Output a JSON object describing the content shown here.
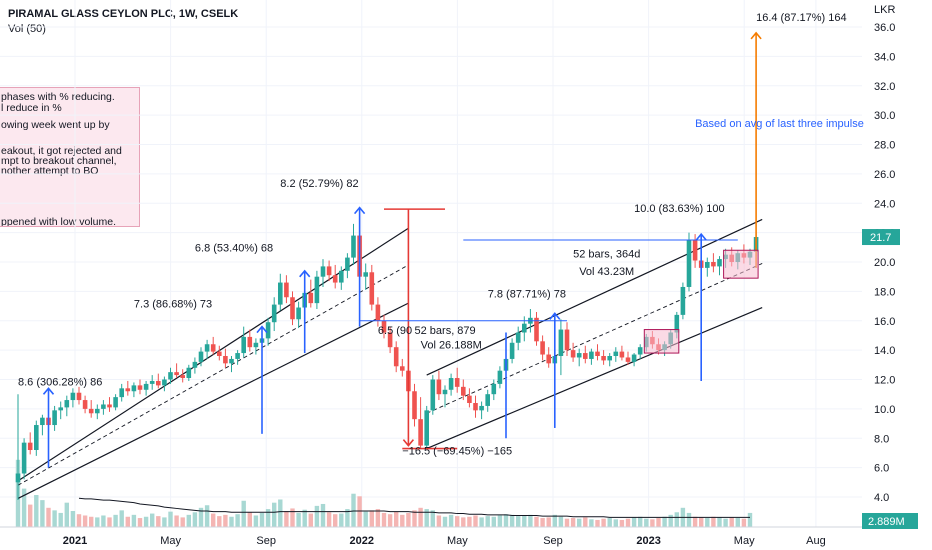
{
  "header": {
    "title": "PIRAMAL GLASS CEYLON PLC, 1W, CSELK",
    "volume_label": "Vol (50)"
  },
  "notes": [
    "phases with %  reducing.",
    "l reduce in  %",
    "owing week went up by",
    "eakout, it got rejected and",
    "mpt to breakout channel,",
    "nother attempt to BO",
    "ppened with low volume."
  ],
  "colors": {
    "up": "#26a69a",
    "down": "#ef5350",
    "volume_up": "#a8d8d3",
    "volume_down": "#f4b5b3",
    "channel": "#131722",
    "blue": "#2962ff",
    "red": "#e53935",
    "orange": "#f57c00",
    "box_fill": "#f8bbd0",
    "box_stroke": "#ad1457"
  },
  "chart_data": {
    "type": "candlestick",
    "title": "PIRAMAL GLASS CEYLON PLC, 1W, CSELK",
    "currency_label": "LKR",
    "y_range": [
      3.0,
      37.0
    ],
    "y_ticks": [
      "4.0",
      "6.0",
      "8.0",
      "10.0",
      "12.0",
      "14.0",
      "16.0",
      "18.0",
      "20.0",
      "22.0",
      "24.0",
      "26.0",
      "28.0",
      "30.0",
      "32.0",
      "34.0",
      "36.0"
    ],
    "x_ticks": [
      {
        "label": "2021",
        "year": 2021,
        "month": 1
      },
      {
        "label": "May",
        "year": 2021,
        "month": 5
      },
      {
        "label": "Sep",
        "year": 2021,
        "month": 9
      },
      {
        "label": "2022",
        "year": 2022,
        "month": 1
      },
      {
        "label": "May",
        "year": 2022,
        "month": 5
      },
      {
        "label": "Sep",
        "year": 2022,
        "month": 9
      },
      {
        "label": "2023",
        "year": 2023,
        "month": 1
      },
      {
        "label": "May",
        "year": 2023,
        "month": 5
      },
      {
        "label": "Aug",
        "year": 2023,
        "month": 8
      }
    ],
    "last_price": "21.7",
    "last_volume": "2.889M",
    "series": [
      {
        "o": 5.0,
        "h": 11.0,
        "l": 3.8,
        "c": 5.6
      },
      {
        "o": 5.6,
        "h": 8.0,
        "l": 5.2,
        "c": 7.7
      },
      {
        "o": 7.7,
        "h": 8.4,
        "l": 6.9,
        "c": 7.2
      },
      {
        "o": 7.2,
        "h": 9.2,
        "l": 6.8,
        "c": 8.9
      },
      {
        "o": 8.9,
        "h": 9.6,
        "l": 8.2,
        "c": 9.4
      },
      {
        "o": 9.4,
        "h": 9.8,
        "l": 8.6,
        "c": 8.9
      },
      {
        "o": 8.9,
        "h": 10.2,
        "l": 8.5,
        "c": 9.9
      },
      {
        "o": 9.9,
        "h": 10.5,
        "l": 9.3,
        "c": 10.1
      },
      {
        "o": 10.1,
        "h": 10.9,
        "l": 9.5,
        "c": 10.6
      },
      {
        "o": 10.6,
        "h": 11.4,
        "l": 10.1,
        "c": 11.1
      },
      {
        "o": 11.1,
        "h": 11.5,
        "l": 10.3,
        "c": 10.6
      },
      {
        "o": 10.6,
        "h": 10.9,
        "l": 9.7,
        "c": 10.0
      },
      {
        "o": 10.0,
        "h": 10.6,
        "l": 9.4,
        "c": 9.7
      },
      {
        "o": 9.7,
        "h": 10.3,
        "l": 9.3,
        "c": 10.0
      },
      {
        "o": 10.0,
        "h": 10.6,
        "l": 9.6,
        "c": 10.3
      },
      {
        "o": 10.3,
        "h": 10.8,
        "l": 9.8,
        "c": 10.1
      },
      {
        "o": 10.1,
        "h": 11.0,
        "l": 9.9,
        "c": 10.8
      },
      {
        "o": 10.8,
        "h": 11.7,
        "l": 10.5,
        "c": 11.4
      },
      {
        "o": 11.4,
        "h": 11.9,
        "l": 10.9,
        "c": 11.2
      },
      {
        "o": 11.2,
        "h": 11.8,
        "l": 10.8,
        "c": 11.6
      },
      {
        "o": 11.6,
        "h": 12.0,
        "l": 11.0,
        "c": 11.3
      },
      {
        "o": 11.3,
        "h": 11.9,
        "l": 10.9,
        "c": 11.7
      },
      {
        "o": 11.7,
        "h": 12.3,
        "l": 11.3,
        "c": 11.9
      },
      {
        "o": 11.9,
        "h": 12.4,
        "l": 11.4,
        "c": 11.6
      },
      {
        "o": 11.6,
        "h": 12.2,
        "l": 11.2,
        "c": 12.0
      },
      {
        "o": 12.0,
        "h": 12.8,
        "l": 11.7,
        "c": 12.5
      },
      {
        "o": 12.5,
        "h": 13.1,
        "l": 12.1,
        "c": 12.3
      },
      {
        "o": 12.3,
        "h": 12.7,
        "l": 11.8,
        "c": 12.1
      },
      {
        "o": 12.1,
        "h": 13.0,
        "l": 11.9,
        "c": 12.8
      },
      {
        "o": 12.8,
        "h": 13.5,
        "l": 12.4,
        "c": 13.2
      },
      {
        "o": 13.2,
        "h": 14.2,
        "l": 12.9,
        "c": 13.9
      },
      {
        "o": 13.9,
        "h": 14.7,
        "l": 13.4,
        "c": 14.4
      },
      {
        "o": 14.4,
        "h": 14.9,
        "l": 13.7,
        "c": 13.9
      },
      {
        "o": 13.9,
        "h": 14.3,
        "l": 13.3,
        "c": 13.6
      },
      {
        "o": 13.6,
        "h": 14.1,
        "l": 12.8,
        "c": 13.1
      },
      {
        "o": 13.1,
        "h": 13.6,
        "l": 12.5,
        "c": 13.4
      },
      {
        "o": 13.4,
        "h": 14.0,
        "l": 13.0,
        "c": 13.8
      },
      {
        "o": 13.8,
        "h": 15.6,
        "l": 13.5,
        "c": 14.9
      },
      {
        "o": 14.9,
        "h": 15.4,
        "l": 13.9,
        "c": 14.2
      },
      {
        "o": 14.2,
        "h": 14.8,
        "l": 13.7,
        "c": 14.5
      },
      {
        "o": 14.5,
        "h": 15.3,
        "l": 13.9,
        "c": 14.8
      },
      {
        "o": 14.8,
        "h": 16.2,
        "l": 14.3,
        "c": 15.9
      },
      {
        "o": 15.9,
        "h": 17.6,
        "l": 15.3,
        "c": 17.1
      },
      {
        "o": 17.1,
        "h": 19.2,
        "l": 16.7,
        "c": 18.6
      },
      {
        "o": 18.6,
        "h": 19.1,
        "l": 17.2,
        "c": 17.6
      },
      {
        "o": 17.6,
        "h": 18.0,
        "l": 15.7,
        "c": 16.1
      },
      {
        "o": 16.1,
        "h": 17.3,
        "l": 15.5,
        "c": 16.9
      },
      {
        "o": 16.9,
        "h": 18.4,
        "l": 16.3,
        "c": 17.9
      },
      {
        "o": 17.9,
        "h": 18.8,
        "l": 16.9,
        "c": 17.2
      },
      {
        "o": 17.2,
        "h": 19.4,
        "l": 16.8,
        "c": 19.0
      },
      {
        "o": 19.0,
        "h": 20.2,
        "l": 18.3,
        "c": 19.7
      },
      {
        "o": 19.7,
        "h": 20.1,
        "l": 18.7,
        "c": 19.1
      },
      {
        "o": 19.1,
        "h": 19.8,
        "l": 18.2,
        "c": 18.6
      },
      {
        "o": 18.6,
        "h": 19.7,
        "l": 18.1,
        "c": 19.4
      },
      {
        "o": 19.4,
        "h": 20.6,
        "l": 18.9,
        "c": 20.3
      },
      {
        "o": 20.3,
        "h": 22.6,
        "l": 19.8,
        "c": 21.8
      },
      {
        "o": 21.8,
        "h": 23.4,
        "l": 18.2,
        "c": 19.0
      },
      {
        "o": 19.0,
        "h": 19.9,
        "l": 18.1,
        "c": 19.3
      },
      {
        "o": 19.3,
        "h": 19.8,
        "l": 16.7,
        "c": 17.1
      },
      {
        "o": 17.1,
        "h": 17.6,
        "l": 15.6,
        "c": 16.0
      },
      {
        "o": 16.0,
        "h": 16.4,
        "l": 14.8,
        "c": 15.2
      },
      {
        "o": 15.2,
        "h": 15.6,
        "l": 13.8,
        "c": 14.2
      },
      {
        "o": 14.2,
        "h": 14.6,
        "l": 12.5,
        "c": 12.9
      },
      {
        "o": 12.9,
        "h": 13.4,
        "l": 12.2,
        "c": 12.6
      },
      {
        "o": 12.6,
        "h": 12.9,
        "l": 10.8,
        "c": 11.2
      },
      {
        "o": 11.2,
        "h": 11.7,
        "l": 8.8,
        "c": 9.3
      },
      {
        "o": 9.3,
        "h": 10.8,
        "l": 7.3,
        "c": 7.5
      },
      {
        "o": 7.5,
        "h": 10.2,
        "l": 7.3,
        "c": 9.9
      },
      {
        "o": 9.9,
        "h": 12.3,
        "l": 9.6,
        "c": 12.0
      },
      {
        "o": 12.0,
        "h": 12.6,
        "l": 10.6,
        "c": 11.0
      },
      {
        "o": 11.0,
        "h": 11.6,
        "l": 10.1,
        "c": 11.3
      },
      {
        "o": 11.3,
        "h": 12.4,
        "l": 10.9,
        "c": 12.1
      },
      {
        "o": 12.1,
        "h": 12.8,
        "l": 11.1,
        "c": 11.5
      },
      {
        "o": 11.5,
        "h": 12.0,
        "l": 10.6,
        "c": 10.9
      },
      {
        "o": 10.9,
        "h": 11.4,
        "l": 10.1,
        "c": 10.4
      },
      {
        "o": 10.4,
        "h": 10.9,
        "l": 9.4,
        "c": 9.9
      },
      {
        "o": 9.9,
        "h": 10.5,
        "l": 9.3,
        "c": 10.2
      },
      {
        "o": 10.2,
        "h": 11.3,
        "l": 9.8,
        "c": 11.0
      },
      {
        "o": 11.0,
        "h": 12.0,
        "l": 10.6,
        "c": 11.7
      },
      {
        "o": 11.7,
        "h": 12.9,
        "l": 11.4,
        "c": 12.6
      },
      {
        "o": 12.6,
        "h": 13.7,
        "l": 12.2,
        "c": 13.4
      },
      {
        "o": 13.4,
        "h": 14.8,
        "l": 13.1,
        "c": 14.5
      },
      {
        "o": 14.5,
        "h": 15.6,
        "l": 14.0,
        "c": 15.2
      },
      {
        "o": 15.2,
        "h": 16.3,
        "l": 14.6,
        "c": 15.8
      },
      {
        "o": 15.8,
        "h": 16.8,
        "l": 15.2,
        "c": 16.2
      },
      {
        "o": 16.2,
        "h": 16.6,
        "l": 14.3,
        "c": 14.6
      },
      {
        "o": 14.6,
        "h": 15.0,
        "l": 13.3,
        "c": 13.7
      },
      {
        "o": 13.7,
        "h": 14.2,
        "l": 12.8,
        "c": 13.1
      },
      {
        "o": 13.1,
        "h": 13.9,
        "l": 12.7,
        "c": 13.6
      },
      {
        "o": 13.6,
        "h": 16.1,
        "l": 12.3,
        "c": 15.4
      },
      {
        "o": 15.4,
        "h": 15.9,
        "l": 13.6,
        "c": 14.0
      },
      {
        "o": 14.0,
        "h": 14.5,
        "l": 13.2,
        "c": 13.5
      },
      {
        "o": 13.5,
        "h": 14.1,
        "l": 12.9,
        "c": 13.8
      },
      {
        "o": 13.8,
        "h": 14.3,
        "l": 13.1,
        "c": 13.4
      },
      {
        "o": 13.4,
        "h": 14.1,
        "l": 13.0,
        "c": 13.9
      },
      {
        "o": 13.9,
        "h": 14.4,
        "l": 13.3,
        "c": 13.6
      },
      {
        "o": 13.6,
        "h": 14.0,
        "l": 13.0,
        "c": 13.3
      },
      {
        "o": 13.3,
        "h": 13.8,
        "l": 12.9,
        "c": 13.6
      },
      {
        "o": 13.6,
        "h": 14.2,
        "l": 13.2,
        "c": 13.9
      },
      {
        "o": 13.9,
        "h": 14.3,
        "l": 13.3,
        "c": 13.5
      },
      {
        "o": 13.5,
        "h": 13.9,
        "l": 13.0,
        "c": 13.2
      },
      {
        "o": 13.2,
        "h": 13.8,
        "l": 12.9,
        "c": 13.7
      },
      {
        "o": 13.7,
        "h": 14.4,
        "l": 13.4,
        "c": 14.2
      },
      {
        "o": 14.2,
        "h": 15.1,
        "l": 13.9,
        "c": 14.9
      },
      {
        "o": 14.9,
        "h": 15.3,
        "l": 14.1,
        "c": 14.4
      },
      {
        "o": 14.4,
        "h": 14.8,
        "l": 13.7,
        "c": 14.0
      },
      {
        "o": 14.0,
        "h": 14.6,
        "l": 13.6,
        "c": 14.4
      },
      {
        "o": 14.4,
        "h": 15.4,
        "l": 14.1,
        "c": 15.2
      },
      {
        "o": 15.2,
        "h": 16.6,
        "l": 14.8,
        "c": 16.4
      },
      {
        "o": 16.4,
        "h": 18.6,
        "l": 16.1,
        "c": 18.3
      },
      {
        "o": 18.3,
        "h": 22.0,
        "l": 18.0,
        "c": 21.5
      },
      {
        "o": 21.5,
        "h": 21.9,
        "l": 19.6,
        "c": 20.1
      },
      {
        "o": 20.1,
        "h": 20.6,
        "l": 19.2,
        "c": 19.6
      },
      {
        "o": 19.6,
        "h": 20.3,
        "l": 19.0,
        "c": 20.0
      },
      {
        "o": 20.0,
        "h": 20.6,
        "l": 19.3,
        "c": 19.7
      },
      {
        "o": 19.7,
        "h": 20.4,
        "l": 19.1,
        "c": 20.2
      },
      {
        "o": 20.2,
        "h": 20.9,
        "l": 19.6,
        "c": 20.5
      },
      {
        "o": 20.5,
        "h": 21.0,
        "l": 19.7,
        "c": 20.0
      },
      {
        "o": 20.0,
        "h": 20.8,
        "l": 19.5,
        "c": 20.6
      },
      {
        "o": 20.6,
        "h": 21.2,
        "l": 19.9,
        "c": 20.3
      },
      {
        "o": 20.3,
        "h": 20.9,
        "l": 19.8,
        "c": 20.7
      },
      {
        "o": 20.7,
        "h": 22.0,
        "l": 20.4,
        "c": 21.7
      }
    ],
    "volume": [
      10.5,
      6.0,
      3.5,
      5.0,
      4.2,
      3.0,
      2.6,
      2.2,
      3.8,
      2.5,
      2.0,
      1.8,
      1.6,
      1.5,
      1.8,
      1.5,
      1.9,
      2.6,
      1.6,
      1.9,
      1.4,
      1.6,
      2.1,
      1.7,
      1.5,
      2.4,
      1.8,
      1.5,
      1.9,
      2.3,
      3.0,
      3.4,
      2.1,
      1.7,
      1.9,
      1.6,
      2.0,
      4.1,
      2.3,
      1.8,
      2.2,
      2.8,
      3.8,
      4.3,
      2.5,
      2.9,
      2.2,
      2.7,
      2.1,
      3.3,
      3.6,
      2.3,
      2.0,
      2.1,
      2.8,
      5.2,
      4.8,
      2.4,
      2.6,
      2.8,
      2.2,
      2.0,
      2.4,
      1.9,
      2.2,
      2.6,
      3.0,
      2.8,
      2.6,
      1.8,
      1.6,
      1.9,
      1.7,
      1.5,
      1.6,
      1.8,
      1.5,
      1.7,
      1.6,
      1.8,
      2.0,
      1.9,
      1.7,
      1.8,
      1.9,
      1.6,
      1.4,
      1.5,
      1.9,
      1.6,
      1.3,
      1.4,
      1.3,
      1.5,
      1.2,
      1.1,
      1.3,
      1.4,
      1.2,
      1.1,
      1.3,
      1.5,
      1.6,
      1.3,
      1.2,
      1.4,
      1.6,
      1.9,
      2.3,
      3.0,
      2.2,
      1.6,
      1.5,
      1.4,
      1.6,
      1.5,
      1.3,
      1.5,
      1.4,
      1.3,
      2.2
    ],
    "volume_ma": [
      0,
      0,
      0,
      0,
      0,
      0,
      0,
      0,
      0,
      0,
      4.5,
      4.4,
      4.4,
      4.3,
      4.2,
      4.2,
      4.1,
      4.0,
      3.9,
      3.8,
      3.6,
      3.5,
      3.4,
      3.3,
      3.1,
      3.0,
      2.9,
      2.8,
      2.7,
      2.6,
      2.5,
      2.5,
      2.4,
      2.4,
      2.4,
      2.3,
      2.3,
      2.3,
      2.3,
      2.3,
      2.3,
      2.3,
      2.3,
      2.4,
      2.4,
      2.4,
      2.4,
      2.4,
      2.4,
      2.4,
      2.4,
      2.4,
      2.4,
      2.4,
      2.4,
      2.5,
      2.5,
      2.5,
      2.5,
      2.5,
      2.5,
      2.4,
      2.4,
      2.4,
      2.4,
      2.3,
      2.3,
      2.3,
      2.3,
      2.2,
      2.2,
      2.2,
      2.1,
      2.1,
      2.0,
      2.0,
      2.0,
      1.9,
      1.9,
      1.9,
      1.9,
      1.8,
      1.8,
      1.8,
      1.8,
      1.8,
      1.7,
      1.7,
      1.7,
      1.7,
      1.7,
      1.6,
      1.6,
      1.6,
      1.6,
      1.6,
      1.6,
      1.5,
      1.5,
      1.5,
      1.5,
      1.5,
      1.5,
      1.5,
      1.5,
      1.5,
      1.5,
      1.5,
      1.5,
      1.5,
      1.5,
      1.5,
      1.5,
      1.5,
      1.5,
      1.5,
      1.5,
      1.5,
      1.5,
      1.5,
      1.5
    ],
    "annotations": {
      "labels": [
        {
          "text": "8.6 (306.28%) 86",
          "x": 0,
          "y": 11.6
        },
        {
          "text": "7.3 (86.68%) 73",
          "x": 19,
          "y": 16.9
        },
        {
          "text": "6.8 (53.40%) 68",
          "x": 29,
          "y": 20.7
        },
        {
          "text": "8.2 (52.79%) 82",
          "x": 43,
          "y": 25.1
        },
        {
          "text": "6.5 (90",
          "x": 59,
          "y": 15.1
        },
        {
          "text": "52 bars, 879",
          "x": 65,
          "y": 15.1
        },
        {
          "text": "Vol 26.188M",
          "x": 66,
          "y": 14.1
        },
        {
          "text": "7.8 (87.71%) 78",
          "x": 77,
          "y": 17.6
        },
        {
          "text": "52 bars, 364d",
          "x": 91,
          "y": 20.3
        },
        {
          "text": "Vol 43.23M",
          "x": 92,
          "y": 19.1
        },
        {
          "text": "10.0 (83.63%) 100",
          "x": 101,
          "y": 23.4
        },
        {
          "text": "−16.5 (−69.45%) −165",
          "x": 63,
          "y": 6.9
        },
        {
          "text": "16.4 (87.17%) 164",
          "x": 121,
          "y": 36.4
        },
        {
          "text": "Based on avg of last three impulse",
          "x": 111,
          "y": 29.2
        }
      ]
    }
  }
}
